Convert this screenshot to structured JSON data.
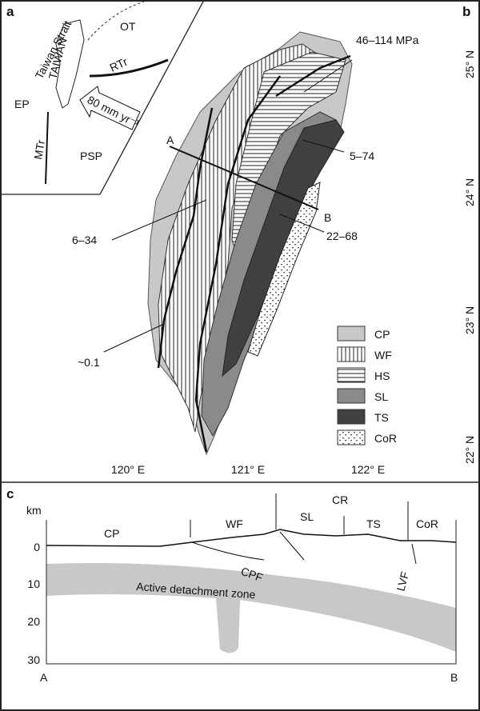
{
  "panel_a": {
    "label": "a",
    "texts": [
      "Taiwan Strait",
      "TAIWAN",
      "OT",
      "RTr",
      "EP",
      "MTr",
      "PSP",
      "80 mm yr⁻¹"
    ]
  },
  "panel_b": {
    "label": "b",
    "annotations": [
      "46–114 MPa",
      "5–74",
      "6–34",
      "22–68",
      "~0.1"
    ],
    "profile": [
      "A",
      "B"
    ],
    "latitudes": [
      "25° N",
      "24° N",
      "23° N",
      "22° N"
    ],
    "longitudes": [
      "120° E",
      "121° E",
      "122° E"
    ],
    "legend": [
      "CP",
      "WF",
      "HS",
      "SL",
      "TS",
      "CoR"
    ]
  },
  "panel_c": {
    "label": "c",
    "axis_title": "km",
    "depths": [
      "0",
      "10",
      "20",
      "30"
    ],
    "units": [
      "CP",
      "WF",
      "SL",
      "CR",
      "TS",
      "CoR"
    ],
    "faults": [
      "CPF",
      "LVF"
    ],
    "zone": "Active detachment zone",
    "ends": [
      "A",
      "B"
    ]
  }
}
